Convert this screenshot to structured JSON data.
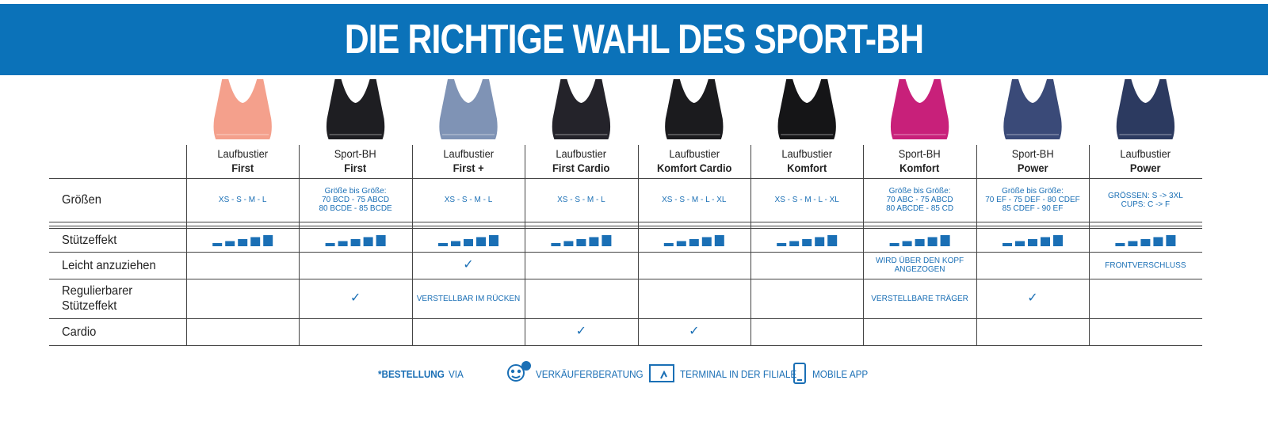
{
  "header": {
    "title": "DIE RICHTIGE WAHL DES SPORT-BH"
  },
  "table": {
    "products": [
      {
        "line1": "Laufbustier",
        "line2": "First",
        "color": "#f4a08c"
      },
      {
        "line1": "Sport-BH",
        "line2": "First",
        "color": "#1e1e22"
      },
      {
        "line1": "Laufbustier",
        "line2": "First +",
        "color": "#7f93b5"
      },
      {
        "line1": "Laufbustier",
        "line2": "First Cardio",
        "color": "#24232a"
      },
      {
        "line1": "Laufbustier",
        "line2": "Komfort Cardio",
        "color": "#1b1b1e"
      },
      {
        "line1": "Laufbustier",
        "line2": "Komfort",
        "color": "#151517"
      },
      {
        "line1": "Sport-BH",
        "line2": "Komfort",
        "color": "#c8207a"
      },
      {
        "line1": "Sport-BH",
        "line2": "Power",
        "color": "#3a4a78"
      },
      {
        "line1": "Laufbustier",
        "line2": "Power",
        "color": "#2c3a60"
      }
    ],
    "rows": [
      {
        "label": [
          "Größen"
        ],
        "cells": [
          [
            "XS - S - M - L"
          ],
          [
            "Größe bis Größe:",
            "70 BCD - 75 ABCD",
            "80 BCDE - 85 BCDE"
          ],
          [
            "XS - S - M - L"
          ],
          [
            "XS - S - M - L"
          ],
          [
            "XS - S - M - L - XL"
          ],
          [
            "XS - S - M - L - XL"
          ],
          [
            "Größe bis Größe:",
            "70 ABC - 75 ABCD",
            "80 ABCDE - 85 CD"
          ],
          [
            "Größe bis Größe:",
            "70 EF - 75 DEF - 80 CDEF",
            "85 CDEF - 90 EF"
          ],
          [
            "GRÖSSEN: S -> 3XL",
            "CUPS: C -> F"
          ]
        ]
      },
      {
        "label": [
          "Stützeffekt"
        ]
      },
      {
        "label": [
          "Leicht anzuziehen"
        ],
        "cells": [
          null,
          null,
          [
            "✓"
          ],
          null,
          null,
          null,
          [
            "WIRD ÜBER DEN KOPF",
            "ANGEZOGEN"
          ],
          null,
          [
            "FRONTVERSCHLUSS"
          ]
        ]
      },
      {
        "label": [
          "Regulierbarer",
          "Stützeffekt"
        ],
        "cells": [
          null,
          [
            "✓"
          ],
          [
            "VERSTELLBAR IM RÜCKEN"
          ],
          null,
          null,
          null,
          [
            "VERSTELLBARE TRÄGER"
          ],
          [
            "✓"
          ],
          null
        ]
      },
      {
        "label": [
          "Cardio"
        ],
        "cells": [
          null,
          null,
          null,
          [
            "✓"
          ],
          [
            "✓"
          ],
          null,
          null,
          null,
          null
        ]
      }
    ]
  },
  "footer": {
    "prefix": "*BESTELLUNG",
    "via": "VIA",
    "items": [
      "VERKÄUFERBERATUNG",
      "TERMINAL IN DER FILIALE",
      "MOBILE APP"
    ]
  }
}
